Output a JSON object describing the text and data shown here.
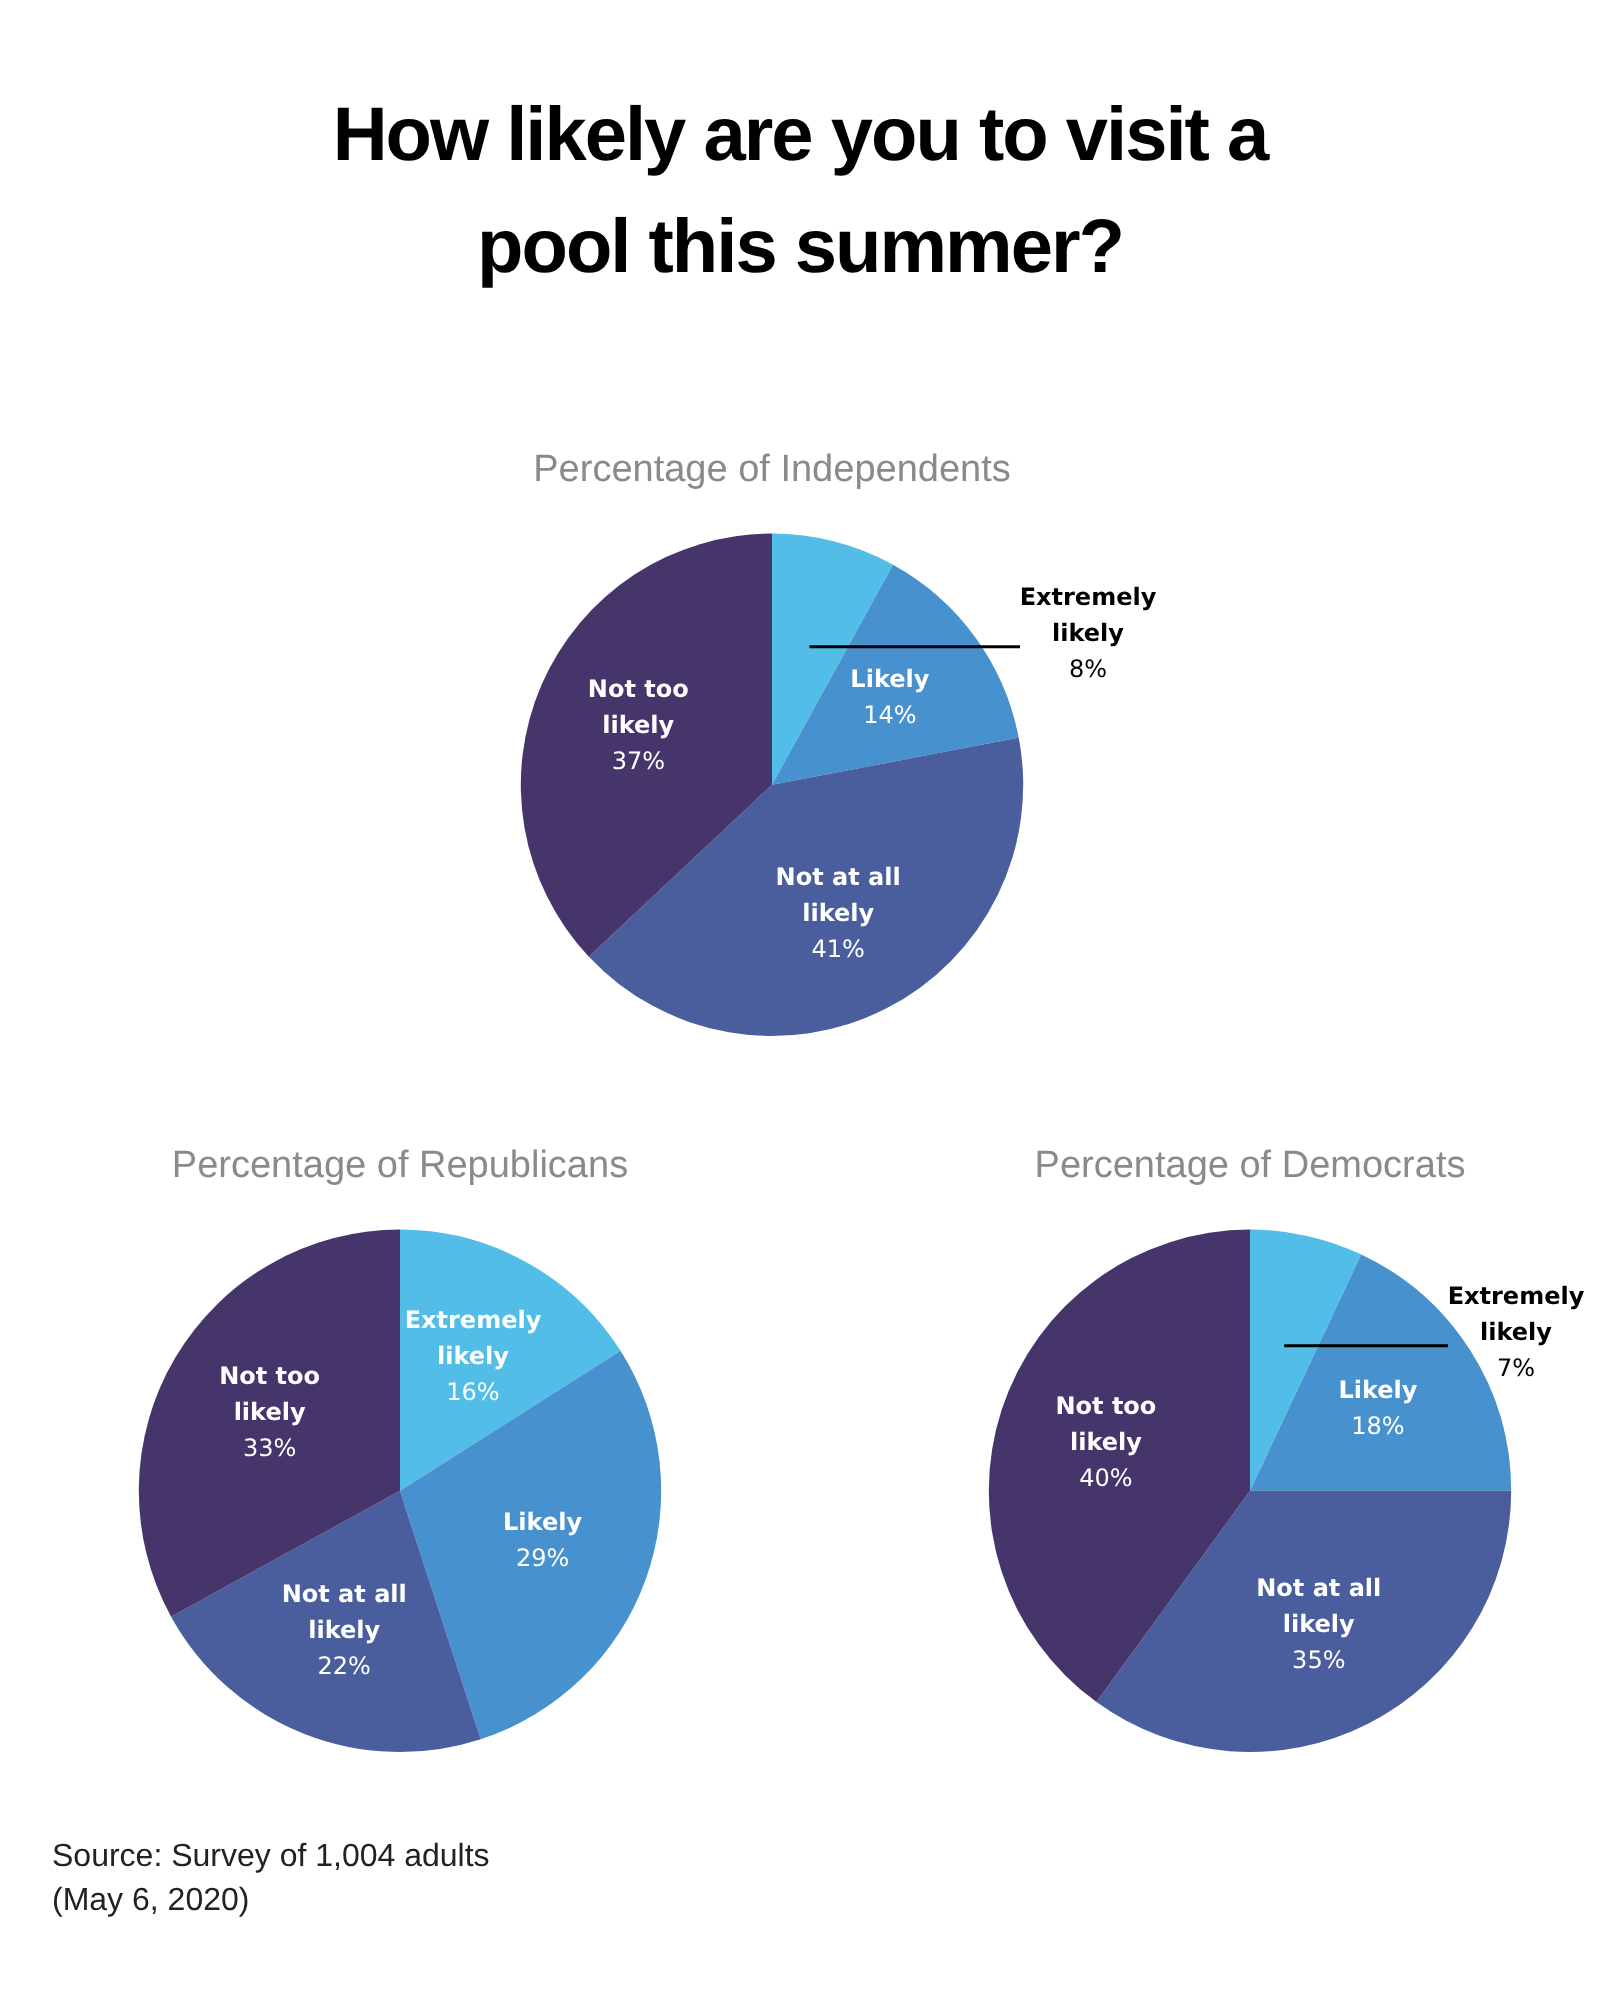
{
  "chart_data": [
    {
      "type": "other",
      "title": "How likely are you to visit a pool this summer?",
      "annotations": [
        "Source: Survey of 1,004 adults (May 6, 2020)"
      ]
    },
    {
      "type": "pie",
      "title": "Percentage of Independents",
      "categories": [
        "Extremely likely",
        "Likely",
        "Not at all likely",
        "Not too likely"
      ],
      "values": [
        8,
        14,
        41,
        37
      ],
      "value_labels": [
        "8%",
        "14%",
        "41%",
        "37%"
      ],
      "colors": [
        "#52bde6",
        "#4891cf",
        "#4a5e9d",
        "#46356b"
      ],
      "legend": false
    },
    {
      "type": "pie",
      "title": "Percentage of Republicans",
      "categories": [
        "Extremely likely",
        "Likely",
        "Not at all likely",
        "Not too likely"
      ],
      "values": [
        16,
        29,
        22,
        33
      ],
      "value_labels": [
        "16%",
        "29%",
        "22%",
        "33%"
      ],
      "colors": [
        "#52bde6",
        "#4891cf",
        "#4a5e9d",
        "#46356b"
      ],
      "legend": false
    },
    {
      "type": "pie",
      "title": "Percentage of Democrats",
      "categories": [
        "Extremely likely",
        "Likely",
        "Not at all likely",
        "Not too likely"
      ],
      "values": [
        7,
        18,
        35,
        40
      ],
      "value_labels": [
        "7%",
        "18%",
        "35%",
        "40%"
      ],
      "colors": [
        "#52bde6",
        "#4891cf",
        "#4a5e9d",
        "#46356b"
      ],
      "legend": false
    }
  ]
}
